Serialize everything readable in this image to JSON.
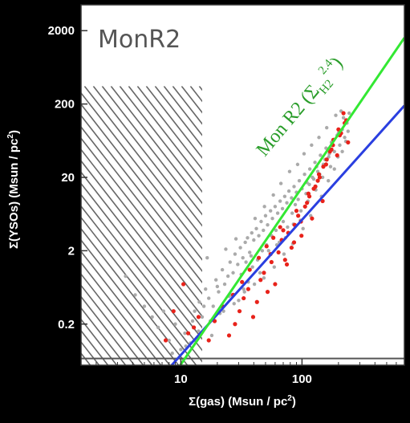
{
  "chart_data": {
    "type": "scatter",
    "title": "",
    "panel_label": "MonR2",
    "xlabel_main": "Σ(gas) (Msun / pc",
    "xlabel_sup": "2",
    "xlabel_end": ")",
    "ylabel_main": "Σ(YSOs) (Msun / pc",
    "ylabel_sup": "2",
    "ylabel_end": ")",
    "x_scale": "log",
    "y_scale": "log",
    "xlim": [
      1.5,
      700
    ],
    "ylim": [
      0.055,
      4500
    ],
    "x_ticks": [
      {
        "value": 10,
        "label": "10"
      },
      {
        "value": 100,
        "label": "100"
      }
    ],
    "y_ticks": [
      {
        "value": 0.2,
        "label": "0.2"
      },
      {
        "value": 2,
        "label": "2"
      },
      {
        "value": 20,
        "label": "20"
      },
      {
        "value": 200,
        "label": "200"
      },
      {
        "value": 2000,
        "label": "2000"
      }
    ],
    "grid": false,
    "hatched_region": {
      "x_range": [
        1.5,
        15
      ],
      "y_range": [
        0.055,
        350
      ]
    },
    "detection_limit_y": 0.068,
    "annotation": {
      "main": "Mon R2 (Σ",
      "sub": "H2",
      "sup": "2.4",
      "end": ")",
      "color": "#2a9d2a"
    },
    "colors": {
      "background": "#ffffff",
      "gray_points": "#aaaaaa",
      "red_points": "#e8221a",
      "fit_line": "#2a3fe0",
      "model_line": "#33e833",
      "hatch": "#666666"
    },
    "series": [
      {
        "name": "",
        "kind": "line",
        "color": "#2a3fe0",
        "x": [
          8.4,
          700
        ],
        "y": [
          0.055,
          190
        ]
      },
      {
        "name": "",
        "kind": "line",
        "color": "#33e833",
        "x": [
          9.9,
          700
        ],
        "y": [
          0.055,
          1600
        ]
      },
      {
        "name": "",
        "kind": "scatter",
        "color": "#aaaaaa",
        "x": [
          3.5,
          4.2,
          5.0,
          5.8,
          6.5,
          7.2,
          8.0,
          9.0,
          10.0,
          10.8,
          12.0,
          13.0,
          14.2,
          15.0,
          16.0,
          17.0,
          18.5,
          19.5,
          20.5,
          22.0,
          23.0,
          24.5,
          25.5,
          27.0,
          28.0,
          29.5,
          31.0,
          32.5,
          34.0,
          35.5,
          37.0,
          38.5,
          40.0,
          42.0,
          44.0,
          46.0,
          48.0,
          50.0,
          52.0,
          55.0,
          57.0,
          60.0,
          63.0,
          66.0,
          69.0,
          72.0,
          75.0,
          78.0,
          82.0,
          86.0,
          90.0,
          95.0,
          100.0,
          105.0,
          110.0,
          116.0,
          122.0,
          128.0,
          135.0,
          142.0,
          150.0,
          158.0,
          166.0,
          175.0,
          185.0,
          195.0,
          205.0,
          215.0,
          225.0,
          235.0,
          12.5,
          18.0,
          21.0,
          26.0,
          30.0,
          33.0,
          36.0,
          39.0,
          43.0,
          47.0,
          51.0,
          56.0,
          61.0,
          65.0,
          70.0,
          76.0,
          83.0,
          88.0,
          93.0,
          98.0,
          108.0,
          115.0,
          125.0,
          132.0,
          140.0,
          155.0,
          168.0,
          180.0,
          200.0,
          220.0,
          16.5,
          23.5,
          28.5,
          34.5,
          41.0,
          49.0,
          58.0,
          67.0,
          79.0,
          92.0,
          104.0,
          120.0,
          138.0,
          160.0,
          190.0,
          210.0,
          15.5,
          20.0,
          25.0,
          31.5,
          38.0,
          45.0,
          53.0,
          62.0,
          73.0,
          85.0,
          97.0,
          112.0,
          130.0,
          148.0,
          172.0,
          198.0,
          230.0,
          8.5,
          11.0,
          14.0,
          17.5,
          22.5,
          27.5,
          33.5,
          40.5,
          48.5,
          59.0,
          71.0,
          84.0,
          102.0,
          118.0,
          145.0,
          165.0,
          185.0,
          215.0,
          240.0,
          245.0
        ],
        "y": [
          0.9,
          0.5,
          0.35,
          0.25,
          0.18,
          0.3,
          0.12,
          0.2,
          0.09,
          0.15,
          0.11,
          0.3,
          0.4,
          0.25,
          0.6,
          0.45,
          0.35,
          0.8,
          0.55,
          1.1,
          0.7,
          0.9,
          1.4,
          1.0,
          1.8,
          1.3,
          2.2,
          1.6,
          2.6,
          3.0,
          1.9,
          3.5,
          2.8,
          4.0,
          3.2,
          5.0,
          3.8,
          6.0,
          4.5,
          7.0,
          5.5,
          8.0,
          6.5,
          9.5,
          7.5,
          11.0,
          9.0,
          13.0,
          10.5,
          15.0,
          12.5,
          18.0,
          14.0,
          22.0,
          17.0,
          26.0,
          20.0,
          32.0,
          24.0,
          40.0,
          30.0,
          50.0,
          38.0,
          60.0,
          45.0,
          75.0,
          55.0,
          90.0,
          70.0,
          110.0,
          0.22,
          0.14,
          0.28,
          0.5,
          0.42,
          0.6,
          0.75,
          1.2,
          1.5,
          2.0,
          2.4,
          3.2,
          3.8,
          2.6,
          5.0,
          4.2,
          6.5,
          8.5,
          10.0,
          7.0,
          12.0,
          16.0,
          19.0,
          28.0,
          22.0,
          35.0,
          42.0,
          65.0,
          80.0,
          130.0,
          1.6,
          2.1,
          2.9,
          1.4,
          5.5,
          8.0,
          11.5,
          16.5,
          24.0,
          30.0,
          42.0,
          55.0,
          70.0,
          95.0,
          140.0,
          160.0,
          0.35,
          0.65,
          0.48,
          0.95,
          1.7,
          1.0,
          2.0,
          2.4,
          3.0,
          4.6,
          5.2,
          9.5,
          13.5,
          20.0,
          28.0,
          38.0,
          62.0,
          0.08,
          0.1,
          0.16,
          0.22,
          0.3,
          0.38,
          0.55,
          0.7,
          0.85,
          1.2,
          1.8,
          2.5,
          4.0,
          6.0,
          11.0,
          18.0,
          26.0,
          45.0,
          85.0,
          150.0
        ]
      },
      {
        "name": "",
        "kind": "scatter",
        "color": "#e8221a",
        "x": [
          7.5,
          8.7,
          10.5,
          11.5,
          12.8,
          14.0,
          17.0,
          19.0,
          22.0,
          25.0,
          28.0,
          30.5,
          33.0,
          36.0,
          39.5,
          42.5,
          45.5,
          48.5,
          52.0,
          56.0,
          60.0,
          64.0,
          68.0,
          72.5,
          77.0,
          82.0,
          87.0,
          93.0,
          99.0,
          106.0,
          113.0,
          121.0,
          129.0,
          138.0,
          148.0,
          158.0,
          170.0,
          182.0,
          195.0,
          210.0,
          225.0,
          240.0,
          37.0,
          44.0,
          51.0,
          58.0,
          66.0,
          75.0,
          86.0,
          98.0,
          110.0,
          125.0,
          140.0,
          160.0,
          180.0,
          200.0,
          220.0,
          27.0,
          32.0,
          55.0,
          70.0,
          90.0,
          115.0,
          135.0,
          150.0,
          175.0,
          205.0,
          232.0
        ],
        "y": [
          0.12,
          0.3,
          0.7,
          0.15,
          0.18,
          0.25,
          0.12,
          0.22,
          0.35,
          0.14,
          0.2,
          0.3,
          0.45,
          0.6,
          0.25,
          0.4,
          0.8,
          1.0,
          0.55,
          1.4,
          0.7,
          1.9,
          2.8,
          1.5,
          3.5,
          2.2,
          4.5,
          6.0,
          3.2,
          8.0,
          12.0,
          5.5,
          15.0,
          22.0,
          9.5,
          30.0,
          45.0,
          65.0,
          40.0,
          80.0,
          110.0,
          60.0,
          1.1,
          1.6,
          2.3,
          3.0,
          4.2,
          1.3,
          2.6,
          5.0,
          9.0,
          14.0,
          20.0,
          35.0,
          55.0,
          90.0,
          150.0,
          0.5,
          0.75,
          1.8,
          3.8,
          7.0,
          11.0,
          18.0,
          28.0,
          48.0,
          75.0,
          120.0
        ]
      }
    ]
  }
}
